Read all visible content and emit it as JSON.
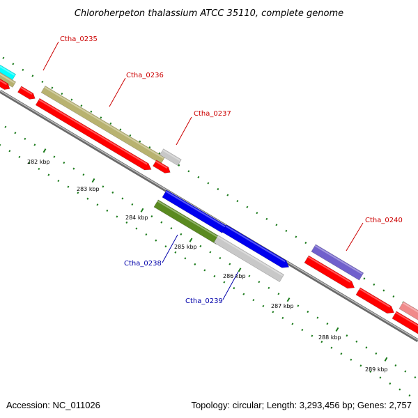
{
  "title": "Chloroherpeton thalassium ATCC 35110, complete genome",
  "footer": {
    "accession": "Accession: NC_011026",
    "summary": "Topology: circular; Length: 3,293,456 bp; Genes: 2,757"
  },
  "ruler_labels": [
    "282 kbp",
    "283 kbp",
    "284 kbp",
    "285 kbp",
    "286 kbp",
    "287 kbp",
    "288 kbp",
    "289 kbp"
  ],
  "genes": [
    {
      "id": "Ctha_0235",
      "color": "#cc0000"
    },
    {
      "id": "Ctha_0236",
      "color": "#cc0000"
    },
    {
      "id": "Ctha_0237",
      "color": "#cc0000"
    },
    {
      "id": "Ctha_0238",
      "color": "#0000aa"
    },
    {
      "id": "Ctha_0239",
      "color": "#0000aa"
    },
    {
      "id": "Ctha_0240",
      "color": "#cc0000"
    }
  ],
  "colors": {
    "cds": "#ff0000",
    "gene_olive": "#b8b270",
    "forward_blue": "#0000ee",
    "reverse_green": "#5a8a20",
    "gray": "#c8c8c8",
    "purple": "#7060cc",
    "cyan": "#00ffff",
    "pink": "#f08a8a",
    "tick_green": "#1a7a1a",
    "backbone": "#808080"
  }
}
